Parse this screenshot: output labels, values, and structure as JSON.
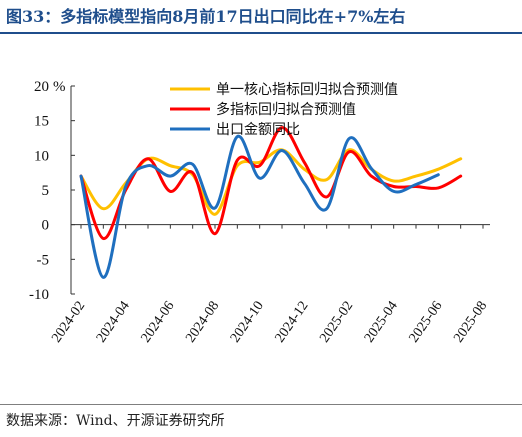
{
  "header": {
    "title": "图33：多指标模型指向8月前17日出口同比在+7%左右"
  },
  "footer": {
    "source": "数据来源：Wind、开源证券研究所"
  },
  "chart_data": {
    "type": "line",
    "unit": "%",
    "x": [
      "2024-02",
      "2024-03",
      "2024-04",
      "2024-05",
      "2024-06",
      "2024-07",
      "2024-08",
      "2024-09",
      "2024-10",
      "2024-11",
      "2024-12",
      "2025-01",
      "2025-02",
      "2025-03",
      "2025-04",
      "2025-05",
      "2025-06",
      "2025-07",
      "2025-08"
    ],
    "xtick_labels": [
      "2024-02",
      "2024-04",
      "2024-06",
      "2024-08",
      "2024-10",
      "2024-12",
      "2025-02",
      "2025-04",
      "2025-06",
      "2025-08"
    ],
    "ylim": [
      -10,
      20
    ],
    "yticks": [
      -10,
      -5,
      0,
      5,
      10,
      15,
      20
    ],
    "grid": false,
    "legend_position": "top-center",
    "series": [
      {
        "name": "单一核心指标回归拟合预测值",
        "color": "#ffc000",
        "values": [
          7.0,
          2.3,
          6.0,
          9.5,
          8.5,
          7.2,
          1.5,
          8.5,
          9.0,
          10.8,
          8.0,
          6.5,
          10.8,
          8.0,
          6.3,
          7.0,
          8.0,
          9.5,
          null
        ]
      },
      {
        "name": "多指标回归拟合预测值",
        "color": "#ff0000",
        "values": [
          7.0,
          -2.0,
          5.0,
          9.5,
          4.8,
          7.5,
          -1.3,
          9.3,
          8.5,
          14.0,
          9.0,
          4.0,
          10.5,
          7.0,
          5.5,
          5.5,
          5.3,
          7.0,
          null
        ]
      },
      {
        "name": "出口金额同比",
        "color": "#1f6fbf",
        "values": [
          7.0,
          -7.6,
          5.5,
          8.5,
          7.0,
          8.7,
          2.4,
          12.7,
          6.7,
          10.7,
          6.0,
          2.3,
          12.4,
          8.1,
          4.8,
          5.8,
          7.2,
          null,
          null
        ]
      }
    ]
  }
}
